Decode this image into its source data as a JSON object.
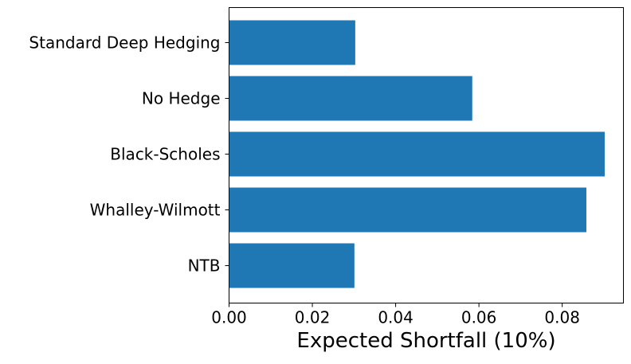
{
  "chart_data": {
    "type": "bar",
    "orientation": "horizontal",
    "categories": [
      "Standard Deep Hedging",
      "No Hedge",
      "Black-Scholes",
      "Whalley-Wilmott",
      "NTB"
    ],
    "values": [
      0.0303,
      0.0584,
      0.0902,
      0.0858,
      0.0301
    ],
    "title": "",
    "xlabel": "Expected Shortfall (10%)",
    "ylabel": "",
    "xlim": [
      0,
      0.0947
    ],
    "xticks": [
      0.0,
      0.02,
      0.04,
      0.06,
      0.08
    ],
    "xtick_labels": [
      "0.00",
      "0.02",
      "0.04",
      "0.06",
      "0.08"
    ],
    "grid": false,
    "legend": "none",
    "bar_color": "#1f77b4"
  }
}
